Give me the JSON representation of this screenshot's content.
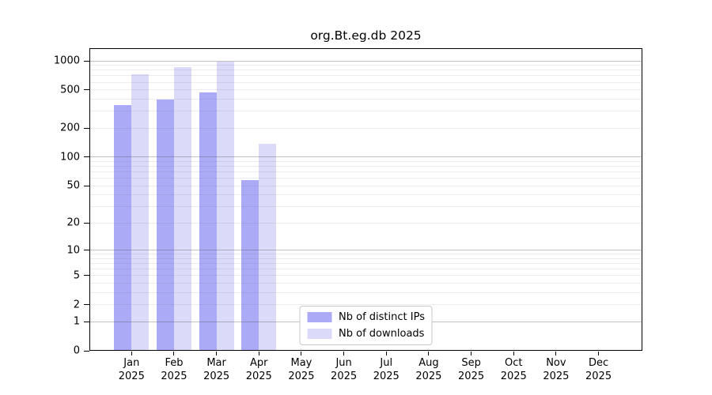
{
  "chart_data": {
    "type": "bar",
    "title": "org.Bt.eg.db 2025",
    "categories": [
      "Jan",
      "Feb",
      "Mar",
      "Apr",
      "May",
      "Jun",
      "Jul",
      "Aug",
      "Sep",
      "Oct",
      "Nov",
      "Dec"
    ],
    "x_tick_sublabel": "2025",
    "series": [
      {
        "name": "Nb of distinct IPs",
        "color": "#aaaaf6",
        "values": [
          345,
          397,
          468,
          57,
          null,
          null,
          null,
          null,
          null,
          null,
          null,
          null
        ]
      },
      {
        "name": "Nb of downloads",
        "color": "#dbdbf9",
        "values": [
          722,
          860,
          989,
          138,
          null,
          null,
          null,
          null,
          null,
          null,
          null,
          null
        ]
      }
    ],
    "y_axis": {
      "ticks": [
        0,
        1,
        2,
        5,
        10,
        20,
        50,
        100,
        200,
        500,
        1000
      ],
      "scale": "log10(1+v)",
      "min": 0,
      "max": 1000
    },
    "grid": {
      "orientation": "horizontal",
      "major": [
        1,
        10,
        100,
        1000
      ],
      "minor": [
        2,
        3,
        4,
        5,
        6,
        7,
        8,
        9,
        20,
        30,
        40,
        50,
        60,
        70,
        80,
        90,
        200,
        300,
        400,
        500,
        600,
        700,
        800,
        900
      ]
    },
    "legend": {
      "position": "bottom-center"
    },
    "colors": {
      "background": "#ffffff",
      "axis": "#000000",
      "major_grid": "#c3c3c3",
      "minor_grid": "#ececec",
      "legend_border": "#c8c8c8"
    }
  }
}
